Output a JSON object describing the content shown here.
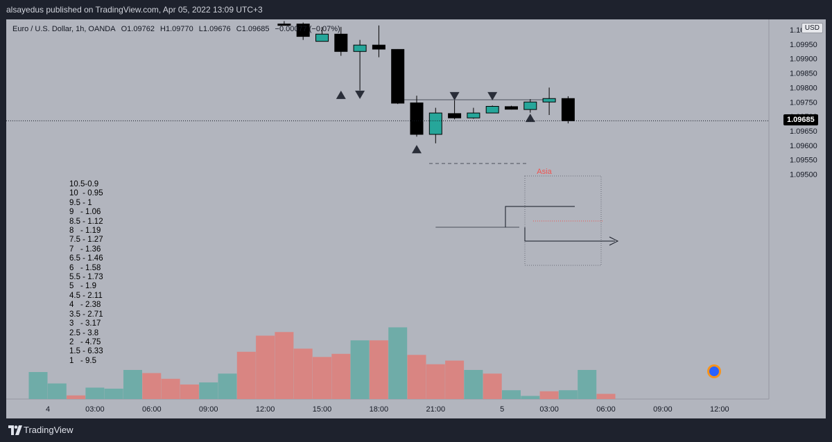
{
  "header": {
    "published_text": "alsayedus published on TradingView.com, Apr 05, 2022 13:09 UTC+3"
  },
  "legend": {
    "symbol": "Euro / U.S. Dollar, 1h, OANDA",
    "open": "O1.09762",
    "high": "H1.09770",
    "low": "L1.09676",
    "close": "C1.09685",
    "change": "−0.00077 (−0.07%)"
  },
  "currency_button": "USD",
  "last_price_tag": "1.09685",
  "session_label": "Asia",
  "notes": [
    "10.5-0.9",
    "10  - 0.95",
    "9.5 - 1",
    "9   - 1.06",
    "8.5 - 1.12",
    "8   - 1.19",
    "7.5 - 1.27",
    "7   - 1.36",
    "6.5 - 1.46",
    "6   - 1.58",
    "5.5 - 1.73",
    "5   - 1.9",
    "4.5 - 2.11",
    "4   - 2.38",
    "3.5 - 2.71",
    "3   - 3.17",
    "2.5 - 3.8",
    "2   - 4.75",
    "1.5 - 6.33",
    "1   - 9.5"
  ],
  "footer": {
    "brand": "TradingView"
  },
  "colors": {
    "background": "#b2b5be",
    "up": "#26a69a",
    "down": "#000000",
    "vol_up": "#6faca8",
    "vol_down": "#d98582"
  },
  "chart_data": {
    "type": "candlestick",
    "price_axis": {
      "ticks": [
        "1.09500",
        "1.09550",
        "1.09600",
        "1.09650",
        "1.09700",
        "1.09750",
        "1.09800",
        "1.09850",
        "1.09900",
        "1.09950",
        "1.10000"
      ],
      "range": [
        1.09487,
        1.1002
      ]
    },
    "time_axis": {
      "ticks": [
        {
          "label": "4",
          "bar": 0
        },
        {
          "label": "03:00",
          "bar": 3
        },
        {
          "label": "06:00",
          "bar": 6
        },
        {
          "label": "09:00",
          "bar": 9
        },
        {
          "label": "12:00",
          "bar": 12
        },
        {
          "label": "15:00",
          "bar": 15
        },
        {
          "label": "18:00",
          "bar": 18
        },
        {
          "label": "21:00",
          "bar": 21
        },
        {
          "label": "5",
          "bar": 24
        },
        {
          "label": "03:00",
          "bar": 27
        },
        {
          "label": "06:00",
          "bar": 30
        },
        {
          "label": "09:00",
          "bar": 33
        },
        {
          "label": "12:00",
          "bar": 36
        }
      ]
    },
    "candles": [
      {
        "bar": 13,
        "o": 1.1002,
        "h": 1.1003,
        "l": 1.10015,
        "c": 1.1002
      },
      {
        "bar": 14,
        "o": 1.1002,
        "h": 1.10025,
        "l": 1.09965,
        "c": 1.09977
      },
      {
        "bar": 15,
        "o": 1.0996,
        "h": 1.1001,
        "l": 1.0996,
        "c": 1.09985
      },
      {
        "bar": 16,
        "o": 1.09985,
        "h": 1.1001,
        "l": 1.0991,
        "c": 1.09925
      },
      {
        "bar": 17,
        "o": 1.09925,
        "h": 1.09965,
        "l": 1.0979,
        "c": 1.09947
      },
      {
        "bar": 18,
        "o": 1.09947,
        "h": 1.10015,
        "l": 1.09905,
        "c": 1.09933
      },
      {
        "bar": 19,
        "o": 1.09932,
        "h": 1.09933,
        "l": 1.09743,
        "c": 1.09746
      },
      {
        "bar": 20,
        "o": 1.09747,
        "h": 1.09772,
        "l": 1.0963,
        "c": 1.09638
      },
      {
        "bar": 21,
        "o": 1.09638,
        "h": 1.0973,
        "l": 1.09607,
        "c": 1.09712
      },
      {
        "bar": 22,
        "o": 1.0971,
        "h": 1.09756,
        "l": 1.0969,
        "c": 1.09695
      },
      {
        "bar": 23,
        "o": 1.09695,
        "h": 1.0973,
        "l": 1.09692,
        "c": 1.09712
      },
      {
        "bar": 24,
        "o": 1.09712,
        "h": 1.09738,
        "l": 1.09711,
        "c": 1.09735
      },
      {
        "bar": 25,
        "o": 1.09734,
        "h": 1.09737,
        "l": 1.09724,
        "c": 1.09725
      },
      {
        "bar": 26,
        "o": 1.09724,
        "h": 1.0976,
        "l": 1.09713,
        "c": 1.0975
      },
      {
        "bar": 27,
        "o": 1.0975,
        "h": 1.098,
        "l": 1.09705,
        "c": 1.09762
      },
      {
        "bar": 28,
        "o": 1.09762,
        "h": 1.0977,
        "l": 1.09676,
        "c": 1.09685
      }
    ],
    "volume": [
      {
        "bar": 0,
        "v": 52,
        "dir": "up"
      },
      {
        "bar": 1,
        "v": 30,
        "dir": "up"
      },
      {
        "bar": 2,
        "v": 7,
        "dir": "down"
      },
      {
        "bar": 3,
        "v": 22,
        "dir": "up"
      },
      {
        "bar": 4,
        "v": 20,
        "dir": "up"
      },
      {
        "bar": 5,
        "v": 56,
        "dir": "up"
      },
      {
        "bar": 6,
        "v": 50,
        "dir": "down"
      },
      {
        "bar": 7,
        "v": 39,
        "dir": "down"
      },
      {
        "bar": 8,
        "v": 28,
        "dir": "down"
      },
      {
        "bar": 9,
        "v": 32,
        "dir": "up"
      },
      {
        "bar": 10,
        "v": 49,
        "dir": "up"
      },
      {
        "bar": 11,
        "v": 91,
        "dir": "down"
      },
      {
        "bar": 12,
        "v": 122,
        "dir": "down"
      },
      {
        "bar": 13,
        "v": 129,
        "dir": "down"
      },
      {
        "bar": 14,
        "v": 97,
        "dir": "down"
      },
      {
        "bar": 15,
        "v": 81,
        "dir": "down"
      },
      {
        "bar": 16,
        "v": 87,
        "dir": "down"
      },
      {
        "bar": 17,
        "v": 113,
        "dir": "up"
      },
      {
        "bar": 18,
        "v": 113,
        "dir": "down"
      },
      {
        "bar": 19,
        "v": 138,
        "dir": "up"
      },
      {
        "bar": 20,
        "v": 85,
        "dir": "down"
      },
      {
        "bar": 21,
        "v": 67,
        "dir": "down"
      },
      {
        "bar": 22,
        "v": 74,
        "dir": "down"
      },
      {
        "bar": 23,
        "v": 56,
        "dir": "up"
      },
      {
        "bar": 24,
        "v": 49,
        "dir": "down"
      },
      {
        "bar": 25,
        "v": 17,
        "dir": "up"
      },
      {
        "bar": 26,
        "v": 6,
        "dir": "up"
      },
      {
        "bar": 27,
        "v": 15,
        "dir": "down"
      },
      {
        "bar": 28,
        "v": 17,
        "dir": "up"
      },
      {
        "bar": 29,
        "v": 56,
        "dir": "up"
      },
      {
        "bar": 30,
        "v": 10,
        "dir": "down"
      }
    ],
    "last_price": 1.09685,
    "markers_down": [
      {
        "bar": 17,
        "price": 1.09775
      },
      {
        "bar": 22,
        "price": 1.0977
      },
      {
        "bar": 24,
        "price": 1.0977
      }
    ],
    "markers_up": [
      {
        "bar": 16,
        "price": 1.09775
      },
      {
        "bar": 20,
        "price": 1.09587
      },
      {
        "bar": 26,
        "price": 1.09695
      }
    ]
  }
}
